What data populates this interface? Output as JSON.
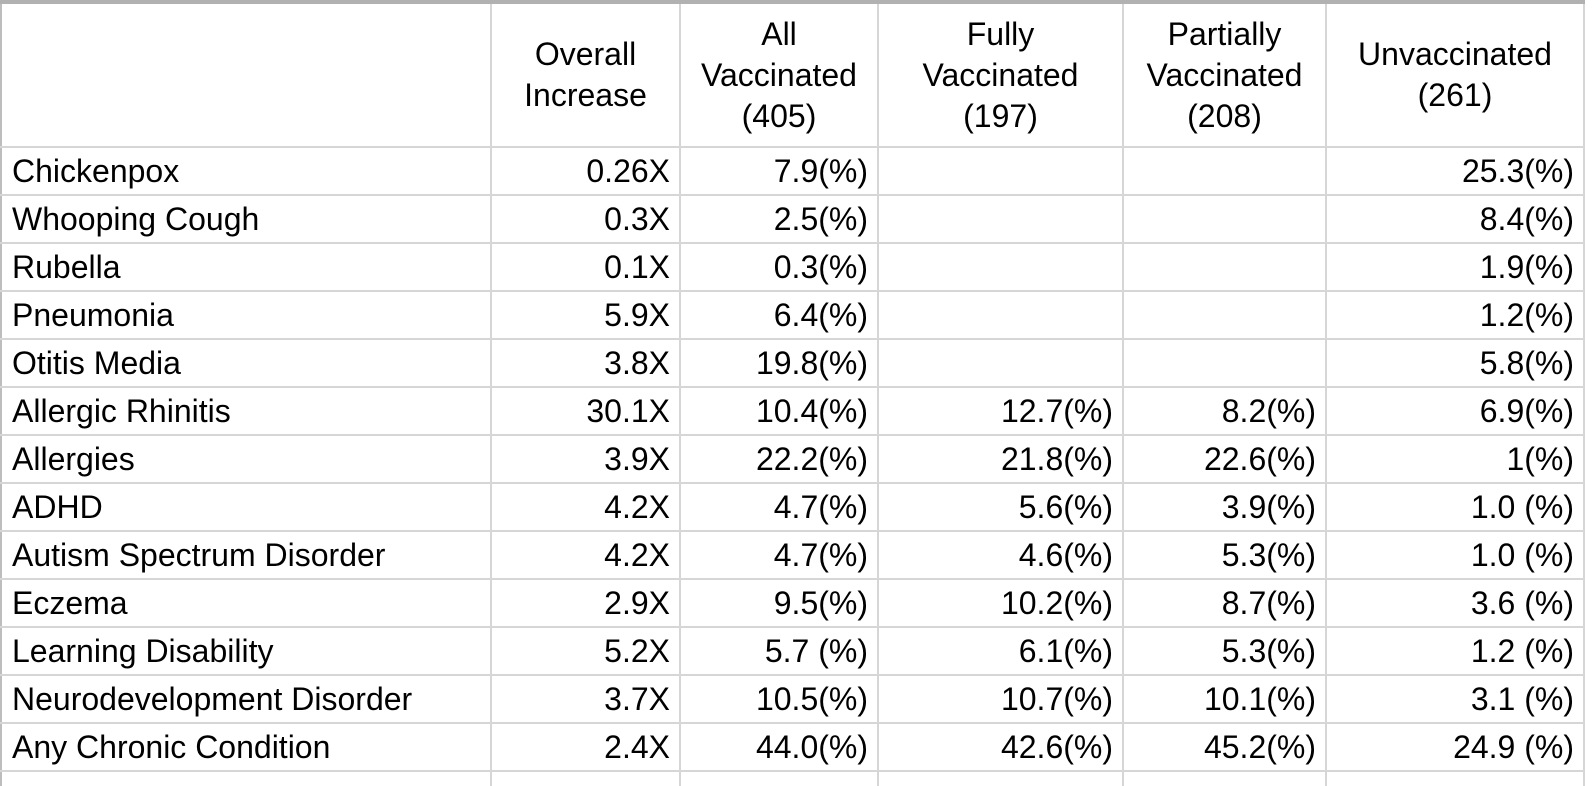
{
  "header_display": {
    "corner": "",
    "overall_increase": "Overall\nIncrease",
    "all_vaccinated": "All\nVaccinated\n(405)",
    "fully_vaccinated": "Fully\nVaccinated\n(197)",
    "partially_vaccinated": "Partially\nVaccinated\n(208)",
    "unvaccinated": "Unvaccinated\n(261)"
  },
  "colors": {
    "grid": "#d6d6d6",
    "outer_top_border": "#b1b1b1",
    "text": "#000000",
    "background": "#ffffff"
  },
  "chart_data": {
    "type": "table",
    "columns": [
      "",
      "Overall Increase",
      "All Vaccinated (405)",
      "Fully Vaccinated (197)",
      "Partially Vaccinated (208)",
      "Unvaccinated (261)"
    ],
    "rows": [
      [
        "Chickenpox",
        "0.26X",
        "7.9(%)",
        "",
        "",
        "25.3(%)"
      ],
      [
        "Whooping Cough",
        "0.3X",
        "2.5(%)",
        "",
        "",
        "8.4(%)"
      ],
      [
        "Rubella",
        "0.1X",
        "0.3(%)",
        "",
        "",
        "1.9(%)"
      ],
      [
        "Pneumonia",
        "5.9X",
        "6.4(%)",
        "",
        "",
        "1.2(%)"
      ],
      [
        "Otitis Media",
        "3.8X",
        "19.8(%)",
        "",
        "",
        "5.8(%)"
      ],
      [
        "Allergic Rhinitis",
        "30.1X",
        "10.4(%)",
        "12.7(%)",
        "8.2(%)",
        "6.9(%)"
      ],
      [
        "Allergies",
        "3.9X",
        "22.2(%)",
        "21.8(%)",
        "22.6(%)",
        "1(%)"
      ],
      [
        "ADHD",
        "4.2X",
        "4.7(%)",
        "5.6(%)",
        "3.9(%)",
        "1.0 (%)"
      ],
      [
        "Autism Spectrum Disorder",
        "4.2X",
        "4.7(%)",
        "4.6(%)",
        "5.3(%)",
        "1.0 (%)"
      ],
      [
        "Eczema",
        "2.9X",
        "9.5(%)",
        "10.2(%)",
        "8.7(%)",
        "3.6 (%)"
      ],
      [
        "Learning Disability",
        "5.2X",
        "5.7 (%)",
        "6.1(%)",
        "5.3(%)",
        "1.2 (%)"
      ],
      [
        "Neurodevelopment Disorder",
        "3.7X",
        "10.5(%)",
        "10.7(%)",
        "10.1(%)",
        "3.1 (%)"
      ],
      [
        "Any Chronic Condition",
        "2.4X",
        "44.0(%)",
        "42.6(%)",
        "45.2(%)",
        "24.9 (%)"
      ]
    ]
  }
}
